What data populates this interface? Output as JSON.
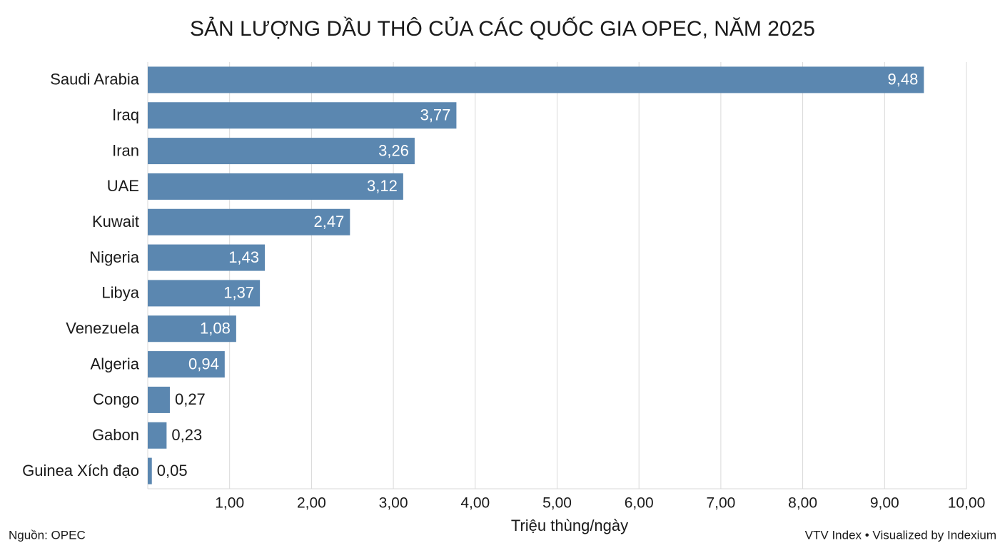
{
  "chart_data": {
    "type": "bar",
    "orientation": "horizontal",
    "title": "SẢN LƯỢNG DẦU THÔ CỦA CÁC QUỐC GIA OPEC, NĂM 2025",
    "x_label": "Triệu thùng/ngày",
    "source": "Nguồn: OPEC",
    "credit": "VTV Index • Visualized by Indexium",
    "categories": [
      "Saudi Arabia",
      "Iraq",
      "Iran",
      "UAE",
      "Kuwait",
      "Nigeria",
      "Libya",
      "Venezuela",
      "Algeria",
      "Congo",
      "Gabon",
      "Guinea Xích đạo"
    ],
    "values": [
      9.48,
      3.77,
      3.26,
      3.12,
      2.47,
      1.43,
      1.37,
      1.08,
      0.94,
      0.27,
      0.23,
      0.05
    ],
    "value_labels": [
      "9,48",
      "3,77",
      "3,26",
      "3,12",
      "2,47",
      "1,43",
      "1,37",
      "1,08",
      "0,94",
      "0,27",
      "0,23",
      "0,05"
    ],
    "color": "#5b87b0",
    "xlim": [
      0,
      10
    ],
    "xticks": [
      {
        "value": 1,
        "label": "1,00"
      },
      {
        "value": 2,
        "label": "2,00"
      },
      {
        "value": 3,
        "label": "3,00"
      },
      {
        "value": 4,
        "label": "4,00"
      },
      {
        "value": 5,
        "label": "5,00"
      },
      {
        "value": 6,
        "label": "6,00"
      },
      {
        "value": 7,
        "label": "7,00"
      },
      {
        "value": 8,
        "label": "8,00"
      },
      {
        "value": 9,
        "label": "9,00"
      },
      {
        "value": 10,
        "label": "10,00"
      }
    ],
    "grid": true
  }
}
